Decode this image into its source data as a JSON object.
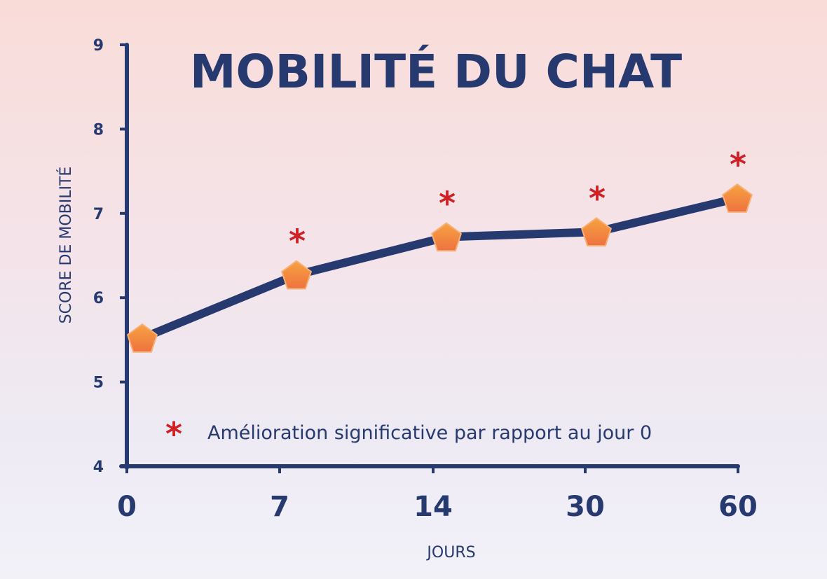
{
  "chart_data": {
    "type": "line",
    "title": "MOBILITÉ DU CHAT",
    "xlabel": "JOURS",
    "ylabel": "SCORE DE MOBILITÉ",
    "categories": [
      "0",
      "7",
      "14",
      "30",
      "60"
    ],
    "values": [
      5.52,
      6.27,
      6.72,
      6.78,
      7.18
    ],
    "significant": [
      false,
      true,
      true,
      true,
      true
    ],
    "yticks": [
      "4",
      "5",
      "6",
      "7",
      "8",
      "9"
    ],
    "ylim": [
      4,
      9
    ],
    "grid": false,
    "legend": {
      "symbol": "*",
      "text": "Amélioration significative par rapport au jour 0",
      "position": "bottom-left"
    },
    "colors": {
      "line": "#263a70",
      "marker": "#f08a3a",
      "significance": "#cf2026",
      "text": "#263a70"
    }
  }
}
